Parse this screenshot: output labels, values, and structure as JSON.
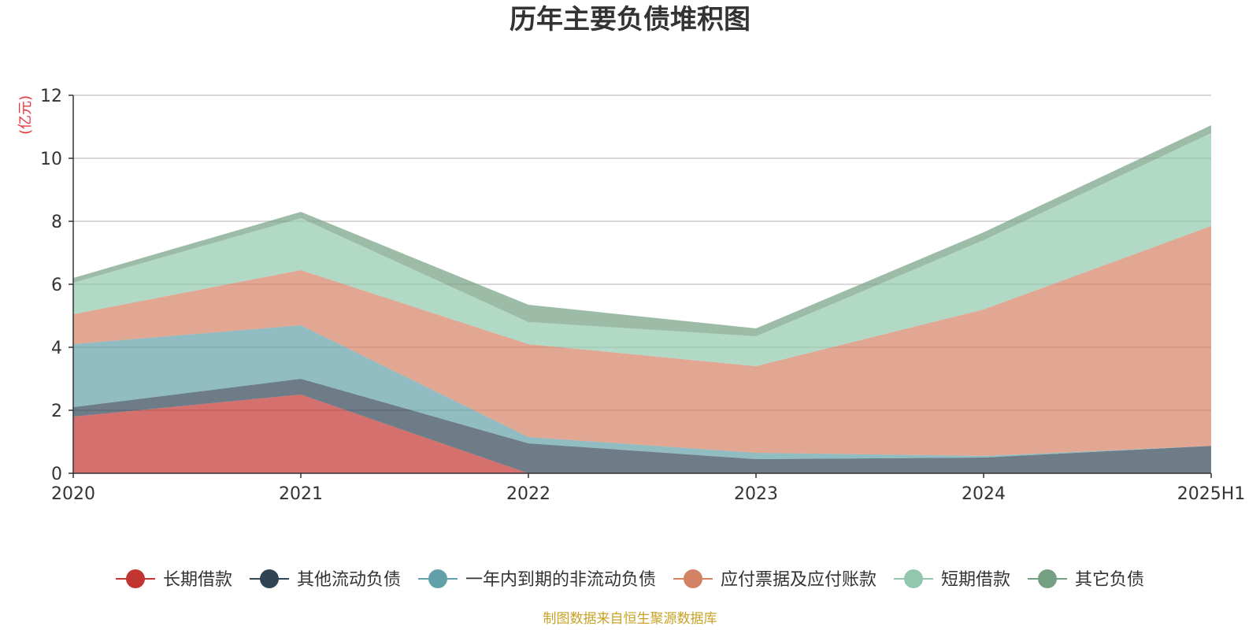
{
  "chart_data": {
    "type": "area",
    "stacked": true,
    "title": "历年主要负债堆积图",
    "unit_label": "(亿元)",
    "categories": [
      "2020",
      "2021",
      "2022",
      "2023",
      "2024",
      "2025H1"
    ],
    "ylim": [
      0,
      12
    ],
    "yticks": [
      "0",
      "2",
      "4",
      "6",
      "8",
      "10",
      "12"
    ],
    "grid": true,
    "legend_position": "bottom",
    "series": [
      {
        "name": "长期借款",
        "color": "#c23531",
        "values": [
          1.8,
          2.5,
          0.0,
          0.0,
          0.0,
          0.0
        ]
      },
      {
        "name": "其他流动负债",
        "color": "#2f4554",
        "values": [
          0.3,
          0.5,
          0.95,
          0.45,
          0.5,
          0.87
        ]
      },
      {
        "name": "一年内到期的非流动负债",
        "color": "#61a0a8",
        "values": [
          2.0,
          1.7,
          0.2,
          0.2,
          0.05,
          0.0
        ]
      },
      {
        "name": "应付票据及应付账款",
        "color": "#d48265",
        "values": [
          0.95,
          1.75,
          2.95,
          2.75,
          4.65,
          6.98
        ]
      },
      {
        "name": "短期借款",
        "color": "#91c7ae",
        "values": [
          1.0,
          1.65,
          0.7,
          0.95,
          2.2,
          2.95
        ]
      },
      {
        "name": "其它负债",
        "color": "#749f83",
        "values": [
          0.15,
          0.2,
          0.55,
          0.25,
          0.25,
          0.25
        ]
      }
    ]
  },
  "footer": {
    "source": "制图数据来自恒生聚源数据库",
    "source_color": "#c9a227",
    "unit_color": "#e8383d"
  }
}
